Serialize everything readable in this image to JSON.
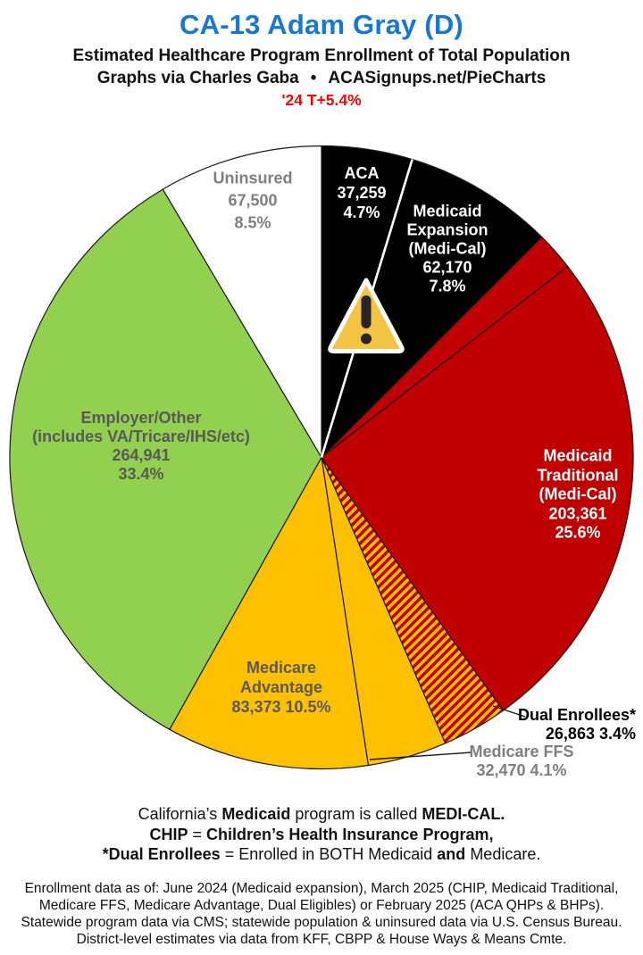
{
  "header": {
    "title": "CA-13 Adam Gray (D)",
    "subtitle": "Estimated Healthcare Program Enrollment of Total Population",
    "byline": "Graphs via Charles Gaba",
    "bullet": "•",
    "site": "ACASignups.net/PieCharts",
    "delta": "'24 T+5.4%"
  },
  "colors": {
    "title_blue": "#1877D2",
    "delta_red": "#FF0000",
    "slice_border": "#1A1A1A",
    "hatch_red": "#C00000",
    "hatch_gold": "#FFC000",
    "divider_white": "#FFFFFF",
    "warning_fill": "#F5C342",
    "warning_border": "#FFFFFF",
    "warning_mark": "#262626",
    "callout_line": "#1A1A1A"
  },
  "chart_data": {
    "type": "pie",
    "title": "CA-13 Adam Gray (D) — Estimated Healthcare Program Enrollment of Total Population",
    "start_angle_deg": 0,
    "direction": "clockwise-from-12-oclock",
    "legend_position": "labels-on-slices",
    "slices": [
      {
        "id": "aca",
        "name": "ACA",
        "value": 37259,
        "pct": 4.7,
        "color": "#000000",
        "label_lines": [
          "ACA",
          "37,259",
          "4.7%"
        ],
        "label_color": "#FFFFFF",
        "end_divider": "#FFFFFF"
      },
      {
        "id": "medicaid-expansion",
        "name": "Medicaid Expansion (Medi-Cal)",
        "value": 62170,
        "pct": 7.8,
        "color": "#000000",
        "label_lines": [
          "Medicaid",
          "Expansion",
          "(Medi-Cal)",
          "62,170",
          "7.8%"
        ],
        "label_color": "#FFFFFF"
      },
      {
        "id": "chip-sliver",
        "name": "CHIP (sliver, unlabeled on chart)",
        "pct": 2.0,
        "color": "#C00000",
        "label_lines": [],
        "label_color": "#FFFFFF"
      },
      {
        "id": "medicaid-traditional",
        "name": "Medicaid Traditional (Medi-Cal)",
        "value": 203361,
        "pct": 25.6,
        "color": "#C00000",
        "label_lines": [
          "Medicaid",
          "Traditional",
          "(Medi-Cal)",
          "203,361",
          "25.6%"
        ],
        "label_color": "#FFFFFF"
      },
      {
        "id": "dual-enrollees",
        "name": "Dual Enrollees*",
        "value": 26863,
        "pct": 3.4,
        "color": "hatch",
        "label_lines": [
          "Dual Enrollees*",
          "26,863 3.4%"
        ],
        "label_color": "#000000"
      },
      {
        "id": "medicare-ffs",
        "name": "Medicare FFS",
        "value": 32470,
        "pct": 4.1,
        "color": "#FFC000",
        "label_lines": [
          "Medicare FFS",
          "32,470 4.1%"
        ],
        "label_color": "#7F7F7F"
      },
      {
        "id": "medicare-advantage",
        "name": "Medicare Advantage",
        "value": 83373,
        "pct": 10.5,
        "color": "#FFC000",
        "label_lines": [
          "Medicare",
          "Advantage",
          "83,373 10.5%"
        ],
        "label_color": "#595959"
      },
      {
        "id": "employer-other",
        "name": "Employer/Other (includes VA/Tricare/IHS/etc)",
        "value": 264941,
        "pct": 33.4,
        "color": "#92D050",
        "label_lines": [
          "Employer/Other",
          "(includes VA/Tricare/IHS/etc)",
          "264,941",
          "33.4%"
        ],
        "label_color": "#595959"
      },
      {
        "id": "uninsured",
        "name": "Uninsured",
        "value": 67500,
        "pct": 8.5,
        "color": "#FFFFFF",
        "label_lines": [
          "Uninsured",
          "67,500",
          "8.5%"
        ],
        "label_color": "#7F7F7F"
      }
    ]
  },
  "notes": {
    "line1": [
      {
        "t": "California’s ",
        "b": false
      },
      {
        "t": "Medicaid",
        "b": true
      },
      {
        "t": " program is called ",
        "b": false
      },
      {
        "t": "MEDI-CAL.",
        "b": true
      }
    ],
    "line2": [
      {
        "t": "CHIP",
        "b": true
      },
      {
        "t": " = ",
        "b": false
      },
      {
        "t": "Children’s Health Insurance Program,",
        "b": true
      }
    ],
    "line3": [
      {
        "t": "*Dual Enrollees",
        "b": true
      },
      {
        "t": " = Enrolled in BOTH Medicaid ",
        "b": false
      },
      {
        "t": "and",
        "b": true
      },
      {
        "t": " Medicare.",
        "b": false
      }
    ]
  },
  "source": {
    "line1": "Enrollment data as of: June 2024 (Medicaid expansion), March 2025 (CHIP, Medicaid Traditional,",
    "line2": "Medicare FFS, Medicare Advantage, Dual Eligibles) or February 2025 (ACA QHPs & BHPs).",
    "line3": "Statewide program data via CMS; statewide population & uninsured data via U.S. Census Bureau.",
    "line4": "District-level estimates via data from KFF, CBPP & House Ways & Means Cmte."
  }
}
